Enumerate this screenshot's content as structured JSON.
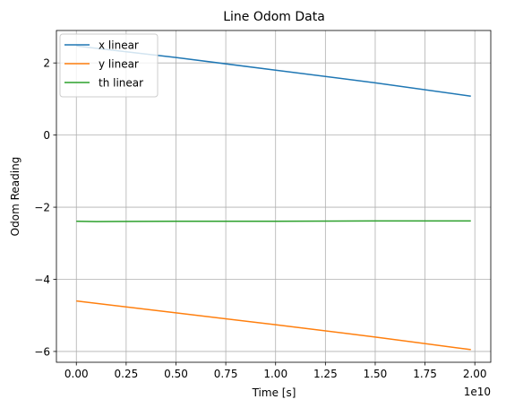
{
  "chart_data": {
    "type": "line",
    "title": "Line Odom Data",
    "xlabel": "Time [s]",
    "ylabel": "Odom Reading",
    "x_offset_label": "1e10",
    "xlim": [
      -0.1,
      2.08
    ],
    "ylim": [
      -6.3,
      2.9
    ],
    "xticks": [
      0.0,
      0.25,
      0.5,
      0.75,
      1.0,
      1.25,
      1.5,
      1.75,
      2.0
    ],
    "xtick_labels": [
      "0.00",
      "0.25",
      "0.50",
      "0.75",
      "1.00",
      "1.25",
      "1.50",
      "1.75",
      "2.00"
    ],
    "yticks": [
      2,
      0,
      -2,
      -4,
      -6
    ],
    "ytick_labels": [
      "2",
      "0",
      "−2",
      "−4",
      "−6"
    ],
    "grid": true,
    "legend_position": "top-left",
    "series": [
      {
        "name": "x linear",
        "color": "#1f77b4",
        "x": [
          0.0,
          0.5,
          1.0,
          1.5,
          1.98
        ],
        "y": [
          2.47,
          2.15,
          1.8,
          1.45,
          1.08
        ]
      },
      {
        "name": "y linear",
        "color": "#ff7f0e",
        "x": [
          0.0,
          0.5,
          1.0,
          1.5,
          1.98
        ],
        "y": [
          -4.6,
          -4.93,
          -5.26,
          -5.6,
          -5.95
        ]
      },
      {
        "name": "th linear",
        "color": "#2ca02c",
        "x": [
          0.0,
          0.1,
          0.5,
          1.0,
          1.5,
          1.98
        ],
        "y": [
          -2.39,
          -2.4,
          -2.39,
          -2.39,
          -2.38,
          -2.38
        ]
      }
    ]
  }
}
